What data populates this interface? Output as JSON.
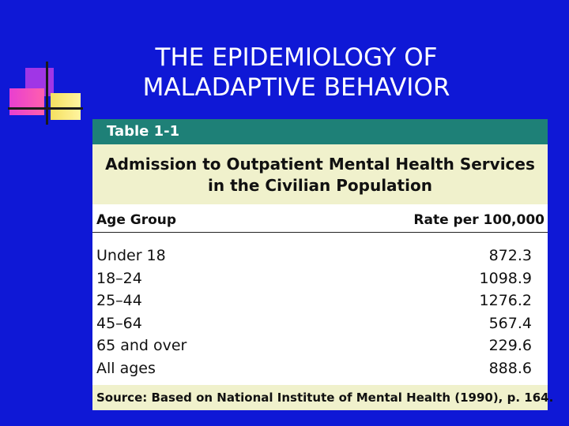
{
  "slide": {
    "title_line1": "THE EPIDEMIOLOGY OF",
    "title_line2": "MALADAPTIVE BEHAVIOR"
  },
  "table": {
    "label": "Table 1-1",
    "caption_line1": "Admission to Outpatient Mental Health Services",
    "caption_line2": "in the Civilian Population",
    "columns": [
      "Age Group",
      "Rate per 100,000"
    ],
    "rows": [
      {
        "age": "Under 18",
        "rate": "872.3"
      },
      {
        "age": "18–24",
        "rate": "1098.9"
      },
      {
        "age": "25–44",
        "rate": "1276.2"
      },
      {
        "age": "45–64",
        "rate": "567.4"
      },
      {
        "age": "65 and over",
        "rate": "229.6"
      },
      {
        "age": "All ages",
        "rate": "888.6"
      }
    ],
    "source": "Source: Based on National Institute of Mental Health (1990), p. 164."
  },
  "colors": {
    "background": "#0f18d6",
    "table_header": "#1e8077",
    "caption_bg": "#f0f1cc"
  }
}
